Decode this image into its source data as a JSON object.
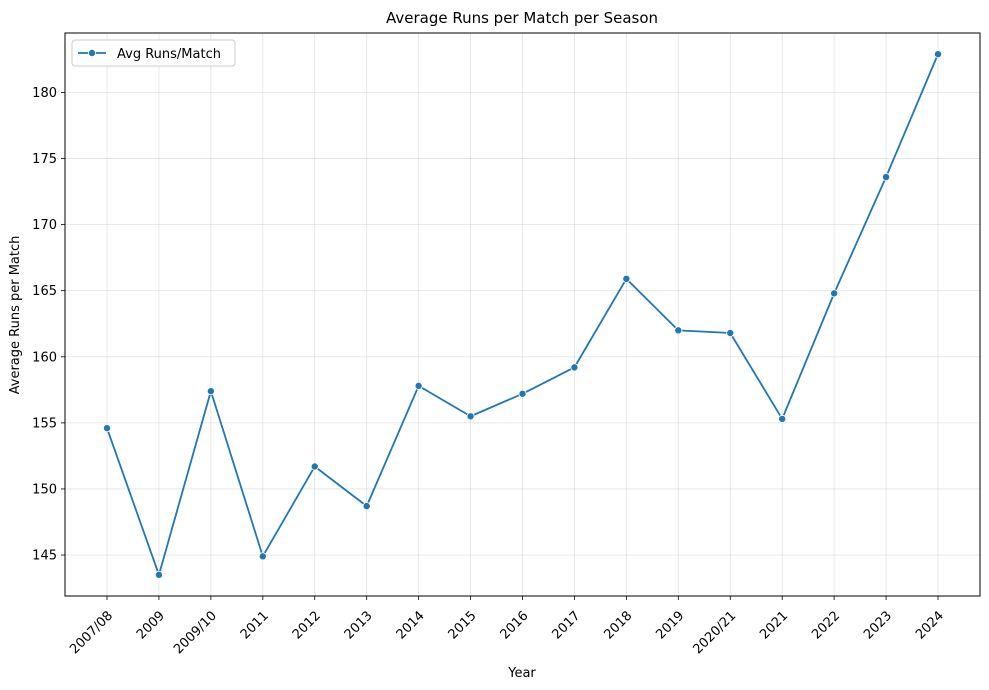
{
  "chart_data": {
    "type": "line",
    "title": "Average Runs per Match per Season",
    "xlabel": "Year",
    "ylabel": "Average Runs per Match",
    "categories": [
      "2007/08",
      "2009",
      "2009/10",
      "2011",
      "2012",
      "2013",
      "2014",
      "2015",
      "2016",
      "2017",
      "2018",
      "2019",
      "2020/21",
      "2021",
      "2022",
      "2023",
      "2024"
    ],
    "series": [
      {
        "name": "Avg Runs/Match",
        "color": "#1f77b4",
        "marker": "circle",
        "values": [
          154.6,
          143.5,
          157.4,
          144.9,
          151.7,
          148.7,
          157.8,
          155.5,
          157.2,
          159.2,
          165.9,
          162.0,
          161.8,
          155.3,
          164.8,
          173.6,
          182.9
        ]
      }
    ],
    "ylim": [
      141.9,
      184.5
    ],
    "yticks": [
      145,
      150,
      155,
      160,
      165,
      170,
      175,
      180
    ],
    "grid": true,
    "legend_position": "top-left",
    "xtick_rotation": 45
  }
}
